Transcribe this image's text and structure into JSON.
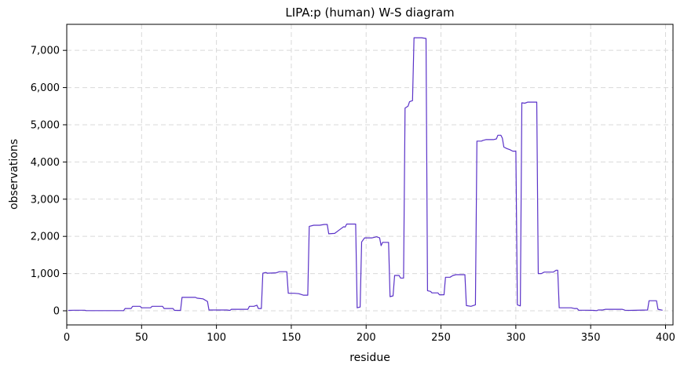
{
  "chart_data": {
    "type": "line",
    "title": "LIPA:p (human) W-S diagram",
    "xlabel": "residue",
    "ylabel": "observations",
    "xlim": [
      0,
      405
    ],
    "ylim": [
      -380,
      7700
    ],
    "x_ticks": [
      0,
      50,
      100,
      150,
      200,
      250,
      300,
      350,
      400
    ],
    "x_tick_labels": [
      "0",
      "50",
      "100",
      "150",
      "200",
      "250",
      "300",
      "350",
      "400"
    ],
    "y_ticks": [
      0,
      1000,
      2000,
      3000,
      4000,
      5000,
      6000,
      7000
    ],
    "y_tick_labels": [
      "0",
      "1,000",
      "2,000",
      "3,000",
      "4,000",
      "5,000",
      "6,000",
      "7,000"
    ],
    "grid": true,
    "line_color": "#5a32c8",
    "series": [
      {
        "name": "",
        "points": [
          [
            1,
            10
          ],
          [
            5,
            15
          ],
          [
            12,
            15
          ],
          [
            13,
            5
          ],
          [
            38,
            5
          ],
          [
            39,
            60
          ],
          [
            43,
            60
          ],
          [
            44,
            120
          ],
          [
            49,
            120
          ],
          [
            50,
            80
          ],
          [
            56,
            80
          ],
          [
            57,
            120
          ],
          [
            64,
            120
          ],
          [
            65,
            60
          ],
          [
            71,
            60
          ],
          [
            72,
            10
          ],
          [
            76,
            10
          ],
          [
            77,
            360
          ],
          [
            86,
            360
          ],
          [
            87,
            340
          ],
          [
            91,
            320
          ],
          [
            94,
            250
          ],
          [
            95,
            20
          ],
          [
            107,
            20
          ],
          [
            109,
            10
          ],
          [
            110,
            40
          ],
          [
            121,
            40
          ],
          [
            122,
            120
          ],
          [
            125,
            120
          ],
          [
            127,
            150
          ],
          [
            128,
            60
          ],
          [
            130,
            60
          ],
          [
            131,
            1010
          ],
          [
            133,
            1030
          ],
          [
            134,
            1010
          ],
          [
            140,
            1020
          ],
          [
            142,
            1050
          ],
          [
            147,
            1050
          ],
          [
            148,
            470
          ],
          [
            152,
            470
          ],
          [
            155,
            460
          ],
          [
            158,
            420
          ],
          [
            161,
            420
          ],
          [
            162,
            2270
          ],
          [
            165,
            2300
          ],
          [
            169,
            2300
          ],
          [
            172,
            2320
          ],
          [
            174,
            2320
          ],
          [
            175,
            2070
          ],
          [
            179,
            2080
          ],
          [
            183,
            2200
          ],
          [
            185,
            2260
          ],
          [
            186,
            2250
          ],
          [
            187,
            2330
          ],
          [
            193,
            2330
          ],
          [
            194,
            80
          ],
          [
            196,
            100
          ],
          [
            197,
            1850
          ],
          [
            199,
            1960
          ],
          [
            204,
            1960
          ],
          [
            207,
            1990
          ],
          [
            209,
            1960
          ],
          [
            210,
            1750
          ],
          [
            211,
            1840
          ],
          [
            215,
            1840
          ],
          [
            216,
            380
          ],
          [
            218,
            400
          ],
          [
            219,
            950
          ],
          [
            222,
            950
          ],
          [
            223,
            880
          ],
          [
            225,
            880
          ],
          [
            226,
            5450
          ],
          [
            228,
            5500
          ],
          [
            229,
            5620
          ],
          [
            231,
            5650
          ],
          [
            232,
            7340
          ],
          [
            237,
            7340
          ],
          [
            240,
            7320
          ],
          [
            241,
            540
          ],
          [
            243,
            520
          ],
          [
            244,
            480
          ],
          [
            248,
            480
          ],
          [
            249,
            430
          ],
          [
            252,
            430
          ],
          [
            253,
            900
          ],
          [
            256,
            900
          ],
          [
            258,
            950
          ],
          [
            260,
            970
          ],
          [
            266,
            970
          ],
          [
            267,
            140
          ],
          [
            270,
            120
          ],
          [
            273,
            160
          ],
          [
            274,
            4560
          ],
          [
            277,
            4560
          ],
          [
            278,
            4580
          ],
          [
            280,
            4600
          ],
          [
            285,
            4600
          ],
          [
            287,
            4620
          ],
          [
            288,
            4720
          ],
          [
            290,
            4720
          ],
          [
            291,
            4640
          ],
          [
            292,
            4400
          ],
          [
            294,
            4360
          ],
          [
            296,
            4330
          ],
          [
            298,
            4290
          ],
          [
            300,
            4290
          ],
          [
            301,
            160
          ],
          [
            303,
            130
          ],
          [
            304,
            5590
          ],
          [
            306,
            5580
          ],
          [
            308,
            5610
          ],
          [
            314,
            5610
          ],
          [
            315,
            1000
          ],
          [
            317,
            1000
          ],
          [
            319,
            1040
          ],
          [
            325,
            1040
          ],
          [
            327,
            1090
          ],
          [
            328,
            1090
          ],
          [
            329,
            80
          ],
          [
            337,
            80
          ],
          [
            339,
            60
          ],
          [
            341,
            60
          ],
          [
            342,
            15
          ],
          [
            348,
            15
          ],
          [
            352,
            10
          ],
          [
            354,
            5
          ],
          [
            355,
            20
          ],
          [
            358,
            20
          ],
          [
            360,
            40
          ],
          [
            371,
            40
          ],
          [
            373,
            15
          ],
          [
            376,
            10
          ],
          [
            388,
            20
          ],
          [
            389,
            270
          ],
          [
            394,
            270
          ],
          [
            395,
            40
          ],
          [
            398,
            15
          ]
        ]
      }
    ]
  }
}
